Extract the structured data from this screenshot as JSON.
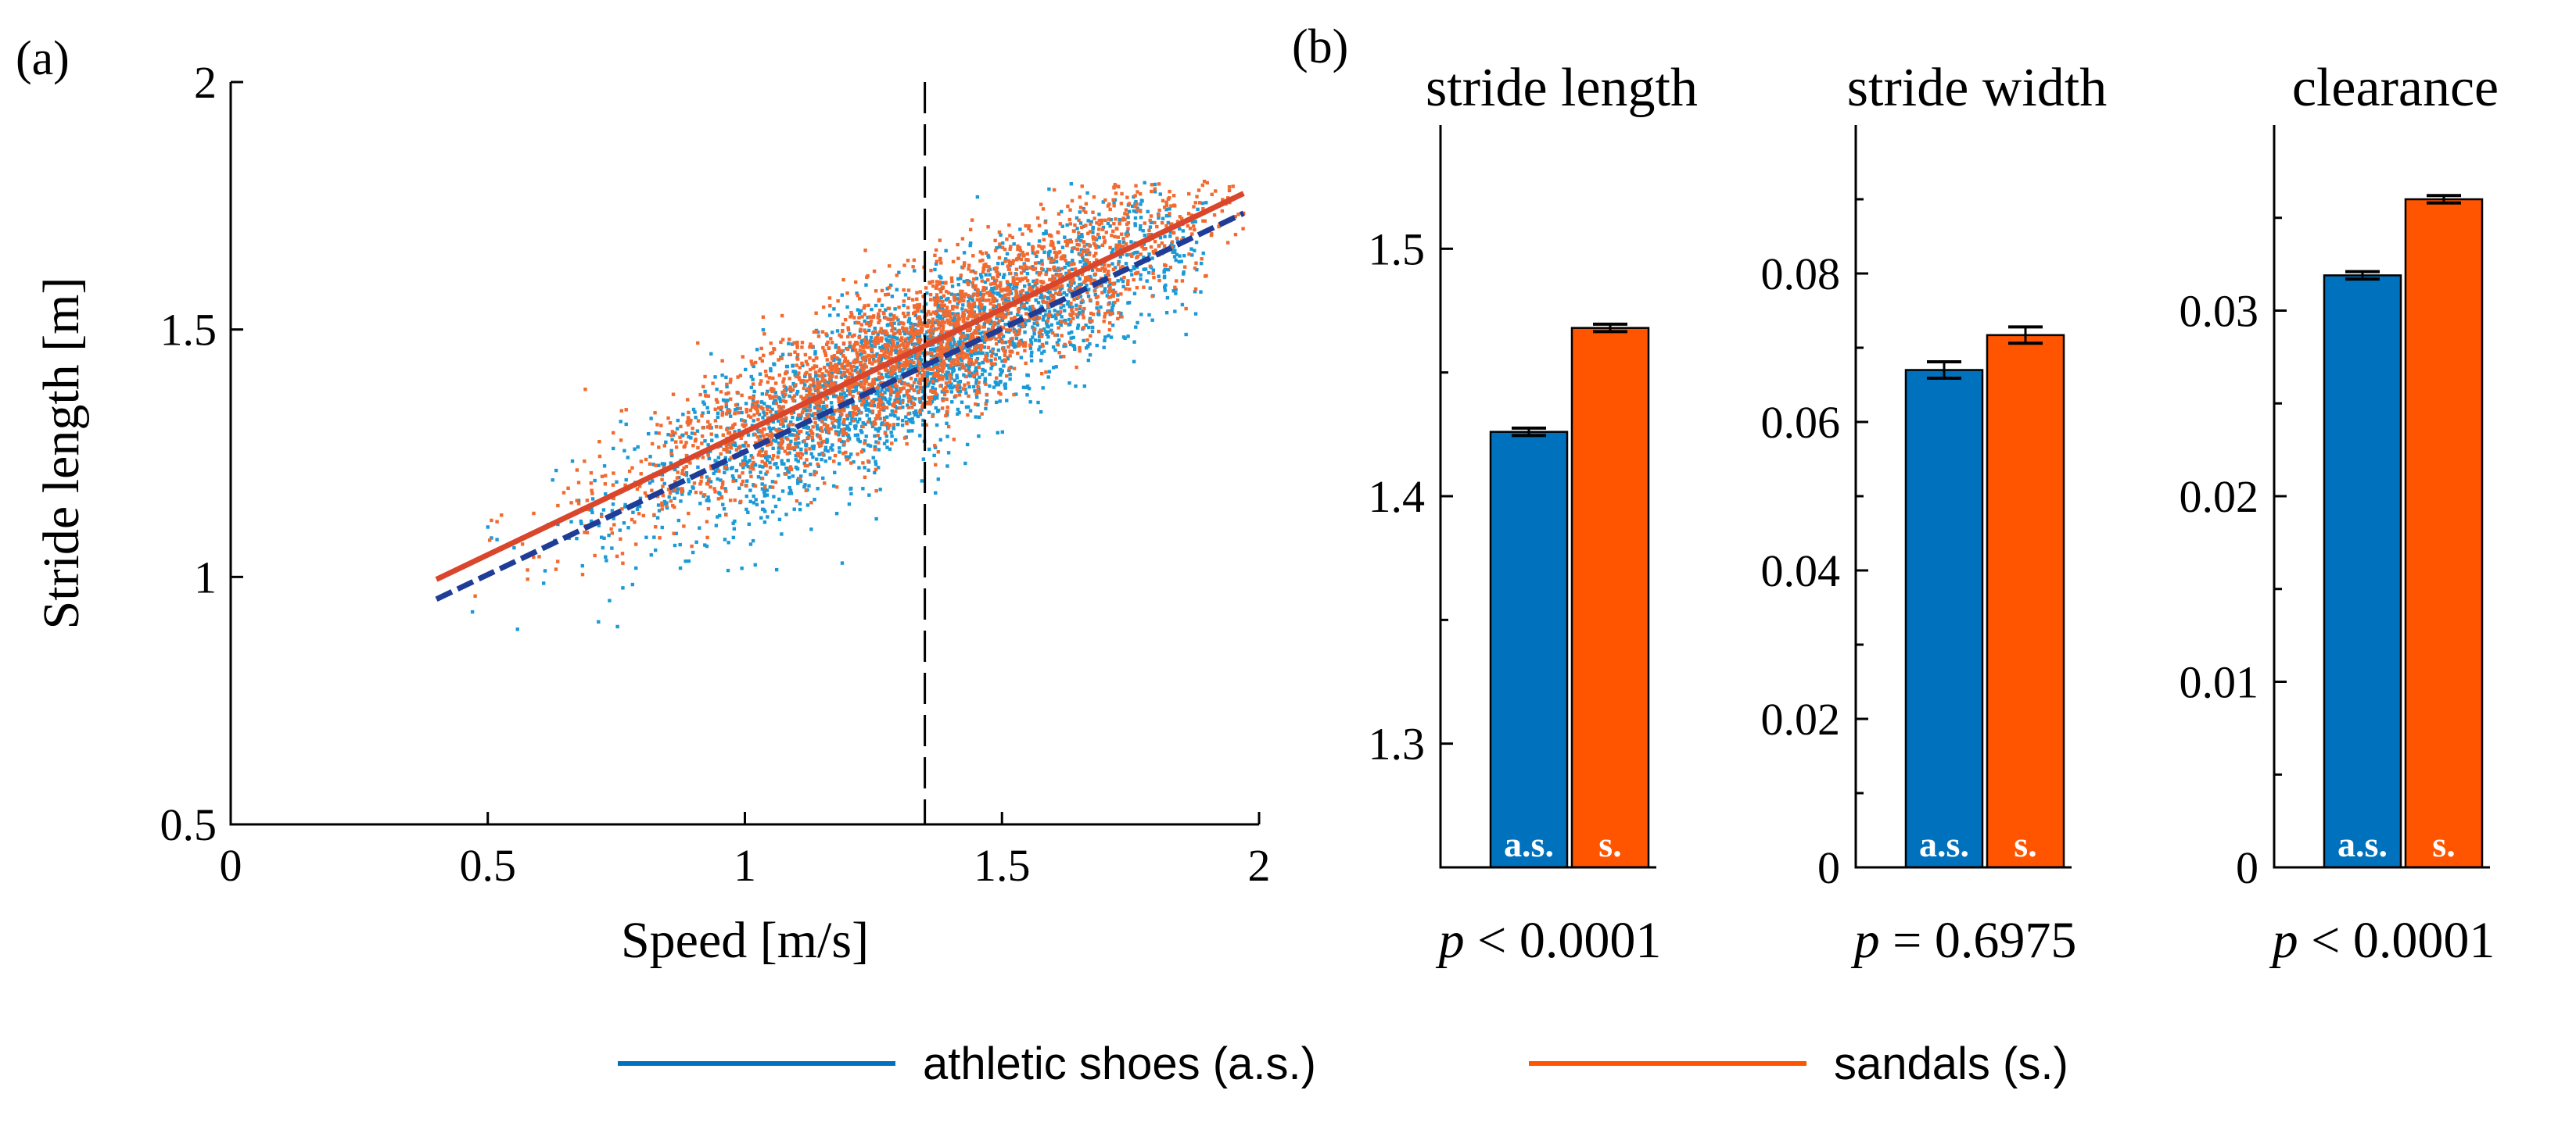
{
  "colors": {
    "athletic": "#0072BD",
    "athletic_points": "#1a9ad6",
    "athletic_fit": "#1f3c96",
    "sandals": "#FF5500",
    "sandals_points": "#f26a30",
    "sandals_fit": "#d9462b"
  },
  "legend": {
    "athletic_label": "athletic shoes (a.s.)",
    "sandals_label": "sandals (s.)"
  },
  "chart_data": [
    {
      "panel_label": "(a)",
      "type": "scatter",
      "xlabel": "Speed [m/s]",
      "ylabel": "Stride length [m]",
      "xlim": [
        0,
        2
      ],
      "ylim": [
        0.5,
        2
      ],
      "xticks": [
        "0",
        "0.5",
        "1",
        "1.5",
        "2"
      ],
      "yticks": [
        "0.5",
        "1",
        "1.5",
        "2"
      ],
      "vertical_reference_x": 1.35,
      "series": [
        {
          "name": "athletic shoes (a.s.)",
          "fit": {
            "x": [
              0.4,
              1.97
            ],
            "y": [
              0.955,
              1.735
            ]
          },
          "cloud": {
            "x_range": [
              0.4,
              1.9
            ],
            "center_slope": 0.5,
            "center_intercept": 0.755,
            "spread": 0.08
          }
        },
        {
          "name": "sandals (s.)",
          "fit": {
            "x": [
              0.4,
              1.97
            ],
            "y": [
              0.995,
              1.775
            ]
          },
          "cloud": {
            "x_range": [
              0.45,
              1.97
            ],
            "center_slope": 0.5,
            "center_intercept": 0.795,
            "spread": 0.075
          }
        }
      ]
    },
    {
      "panel_label": "(b)",
      "type": "bar",
      "title": "stride length",
      "categories": [
        "a.s.",
        "s."
      ],
      "values": [
        1.426,
        1.468
      ],
      "errors": [
        0.0015,
        0.0015
      ],
      "ylim": [
        1.25,
        1.55
      ],
      "yticks": [
        "1.3",
        "1.4",
        "1.5"
      ],
      "minor_ticks": [
        1.35,
        1.45
      ],
      "p_prefix": "p",
      "p_text": " < 0.0001"
    },
    {
      "type": "bar",
      "title": "stride width",
      "categories": [
        "a.s.",
        "s."
      ],
      "values": [
        0.067,
        0.0717
      ],
      "errors": [
        0.0011,
        0.0011
      ],
      "ylim": [
        0,
        0.1
      ],
      "yticks": [
        "0",
        "0.02",
        "0.04",
        "0.06",
        "0.08"
      ],
      "minor_ticks": [
        0.01,
        0.03,
        0.05,
        0.07,
        0.09
      ],
      "p_prefix": "p",
      "p_text": " = 0.6975"
    },
    {
      "type": "bar",
      "title": "clearance",
      "categories": [
        "a.s.",
        "s."
      ],
      "values": [
        0.0319,
        0.036
      ],
      "errors": [
        0.0002,
        0.0002
      ],
      "ylim": [
        0,
        0.04
      ],
      "yticks": [
        "0",
        "0.01",
        "0.02",
        "0.03"
      ],
      "minor_ticks": [
        0.005,
        0.015,
        0.025,
        0.035
      ],
      "p_prefix": "p",
      "p_text": " < 0.0001"
    }
  ]
}
